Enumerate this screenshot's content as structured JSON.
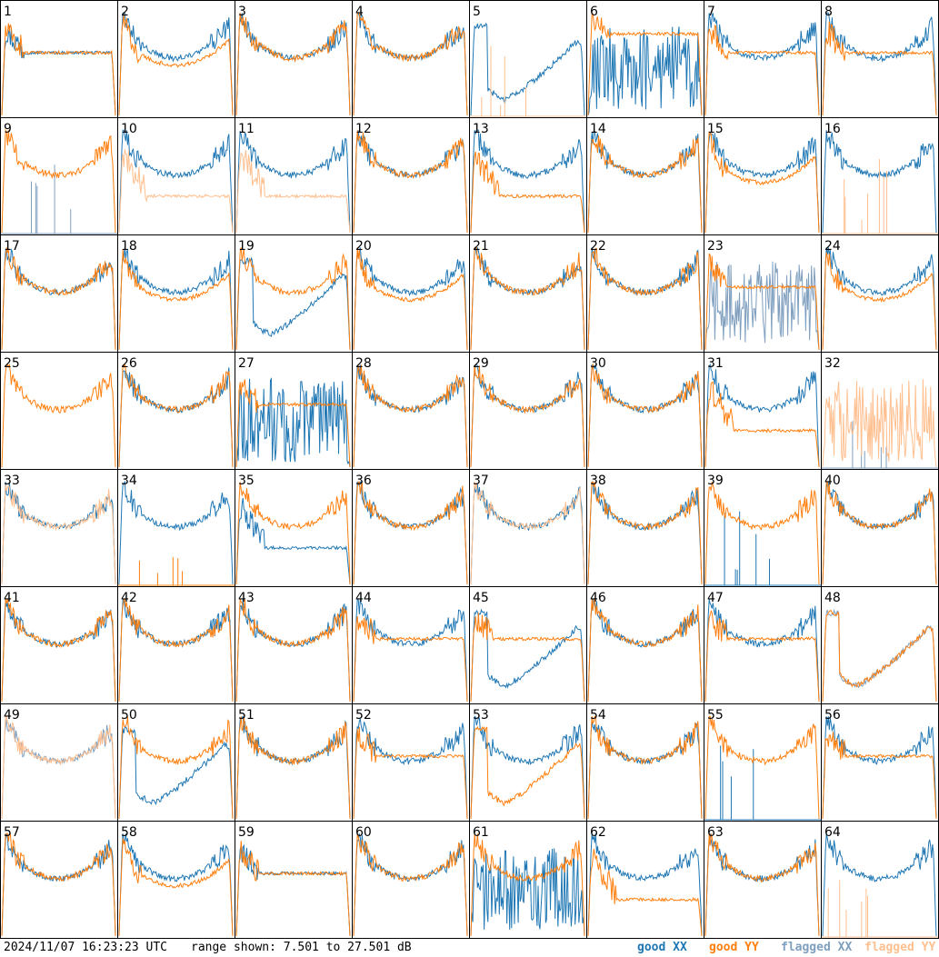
{
  "colors": {
    "good_xx": "#1f77b4",
    "good_yy": "#ff7f0e",
    "flagged_xx": "#7f9fbf",
    "flagged_yy": "#ffbf8f",
    "grid": "#000000"
  },
  "footer": {
    "timestamp": "2024/11/07 16:23:23 UTC",
    "range_text": "range shown: 7.501 to 27.501 dB",
    "legend_good_xx": "good XX",
    "legend_good_yy": "good YY",
    "legend_flagged_xx": "flagged XX",
    "legend_flagged_yy": "flagged YY"
  },
  "chart_data": {
    "type": "line",
    "layout": "8x8 grid of small multiples",
    "ylim": [
      7.501,
      27.501
    ],
    "unit": "dB",
    "panels": [
      {
        "id": "1",
        "xx": "flat",
        "yy": "flat",
        "xx_flag": false,
        "yy_flag": false
      },
      {
        "id": "2",
        "xx": "bowl",
        "yy": "bowl_low",
        "xx_flag": false,
        "yy_flag": false
      },
      {
        "id": "3",
        "xx": "bowl",
        "yy": "bowl",
        "xx_flag": false,
        "yy_flag": false
      },
      {
        "id": "4",
        "xx": "bowl",
        "yy": "bowl",
        "xx_flag": false,
        "yy_flag": false
      },
      {
        "id": "5",
        "xx": "dip",
        "yy": "dead",
        "xx_flag": false,
        "yy_flag": true
      },
      {
        "id": "6",
        "xx": "noisy",
        "yy": "flat_high",
        "xx_flag": false,
        "yy_flag": false
      },
      {
        "id": "7",
        "xx": "bowl",
        "yy": "flat",
        "xx_flag": false,
        "yy_flag": false
      },
      {
        "id": "8",
        "xx": "bowl",
        "yy": "flat",
        "xx_flag": false,
        "yy_flag": false
      },
      {
        "id": "9",
        "xx": "dead",
        "yy": "bowl",
        "xx_flag": true,
        "yy_flag": false
      },
      {
        "id": "10",
        "xx": "bowl",
        "yy": "low_flat",
        "xx_flag": false,
        "yy_flag": true
      },
      {
        "id": "11",
        "xx": "bowl",
        "yy": "low_flat",
        "xx_flag": false,
        "yy_flag": true
      },
      {
        "id": "12",
        "xx": "bowl",
        "yy": "bowl",
        "xx_flag": false,
        "yy_flag": false
      },
      {
        "id": "13",
        "xx": "bowl",
        "yy": "low_flat",
        "xx_flag": false,
        "yy_flag": false
      },
      {
        "id": "14",
        "xx": "bowl",
        "yy": "bowl",
        "xx_flag": false,
        "yy_flag": false
      },
      {
        "id": "15",
        "xx": "bowl",
        "yy": "bowl_low",
        "xx_flag": false,
        "yy_flag": false
      },
      {
        "id": "16",
        "xx": "bowl",
        "yy": "dead",
        "xx_flag": false,
        "yy_flag": true
      },
      {
        "id": "17",
        "xx": "bowl",
        "yy": "bowl",
        "xx_flag": false,
        "yy_flag": false
      },
      {
        "id": "18",
        "xx": "bowl",
        "yy": "bowl_low",
        "xx_flag": false,
        "yy_flag": false
      },
      {
        "id": "19",
        "xx": "dip",
        "yy": "bowl",
        "xx_flag": false,
        "yy_flag": false
      },
      {
        "id": "20",
        "xx": "bowl",
        "yy": "bowl_low",
        "xx_flag": false,
        "yy_flag": false
      },
      {
        "id": "21",
        "xx": "bowl",
        "yy": "bowl",
        "xx_flag": false,
        "yy_flag": false
      },
      {
        "id": "22",
        "xx": "bowl",
        "yy": "bowl",
        "xx_flag": false,
        "yy_flag": false
      },
      {
        "id": "23",
        "xx": "noisy",
        "yy": "flat",
        "xx_flag": true,
        "yy_flag": false
      },
      {
        "id": "24",
        "xx": "bowl",
        "yy": "bowl_low",
        "xx_flag": false,
        "yy_flag": false
      },
      {
        "id": "25",
        "xx": "none",
        "yy": "bowl",
        "xx_flag": false,
        "yy_flag": false
      },
      {
        "id": "26",
        "xx": "bowl",
        "yy": "bowl",
        "xx_flag": false,
        "yy_flag": false
      },
      {
        "id": "27",
        "xx": "noisy",
        "yy": "flat",
        "xx_flag": false,
        "yy_flag": false
      },
      {
        "id": "28",
        "xx": "bowl",
        "yy": "bowl",
        "xx_flag": false,
        "yy_flag": false
      },
      {
        "id": "29",
        "xx": "bowl",
        "yy": "bowl",
        "xx_flag": false,
        "yy_flag": false
      },
      {
        "id": "30",
        "xx": "bowl",
        "yy": "bowl",
        "xx_flag": false,
        "yy_flag": false
      },
      {
        "id": "31",
        "xx": "bowl",
        "yy": "low_flat",
        "xx_flag": false,
        "yy_flag": false
      },
      {
        "id": "32",
        "xx": "dead",
        "yy": "noisy",
        "xx_flag": true,
        "yy_flag": true
      },
      {
        "id": "33",
        "xx": "bowl",
        "yy": "bowl",
        "xx_flag": false,
        "yy_flag": true
      },
      {
        "id": "34",
        "xx": "bowl",
        "yy": "dead",
        "xx_flag": false,
        "yy_flag": false
      },
      {
        "id": "35",
        "xx": "low_flat",
        "yy": "bowl",
        "xx_flag": false,
        "yy_flag": false
      },
      {
        "id": "36",
        "xx": "bowl",
        "yy": "bowl",
        "xx_flag": false,
        "yy_flag": false
      },
      {
        "id": "37",
        "xx": "bowl",
        "yy": "bowl",
        "xx_flag": false,
        "yy_flag": true
      },
      {
        "id": "38",
        "xx": "bowl",
        "yy": "bowl",
        "xx_flag": false,
        "yy_flag": false
      },
      {
        "id": "39",
        "xx": "dead",
        "yy": "bowl",
        "xx_flag": false,
        "yy_flag": false
      },
      {
        "id": "40",
        "xx": "bowl",
        "yy": "bowl",
        "xx_flag": false,
        "yy_flag": false
      },
      {
        "id": "41",
        "xx": "bowl",
        "yy": "bowl",
        "xx_flag": false,
        "yy_flag": false
      },
      {
        "id": "42",
        "xx": "bowl",
        "yy": "bowl",
        "xx_flag": false,
        "yy_flag": false
      },
      {
        "id": "43",
        "xx": "bowl",
        "yy": "bowl",
        "xx_flag": false,
        "yy_flag": false
      },
      {
        "id": "44",
        "xx": "bowl",
        "yy": "flat",
        "xx_flag": false,
        "yy_flag": false
      },
      {
        "id": "45",
        "xx": "dip",
        "yy": "flat",
        "xx_flag": false,
        "yy_flag": false
      },
      {
        "id": "46",
        "xx": "bowl",
        "yy": "bowl",
        "xx_flag": false,
        "yy_flag": false
      },
      {
        "id": "47",
        "xx": "bowl",
        "yy": "flat",
        "xx_flag": false,
        "yy_flag": false
      },
      {
        "id": "48",
        "xx": "dip",
        "yy": "dip",
        "xx_flag": true,
        "yy_flag": false
      },
      {
        "id": "49",
        "xx": "bowl",
        "yy": "bowl",
        "xx_flag": true,
        "yy_flag": true
      },
      {
        "id": "50",
        "xx": "dip",
        "yy": "bowl",
        "xx_flag": false,
        "yy_flag": false
      },
      {
        "id": "51",
        "xx": "bowl",
        "yy": "bowl",
        "xx_flag": false,
        "yy_flag": false
      },
      {
        "id": "52",
        "xx": "bowl",
        "yy": "flat",
        "xx_flag": false,
        "yy_flag": false
      },
      {
        "id": "53",
        "xx": "bowl",
        "yy": "dip",
        "xx_flag": false,
        "yy_flag": false
      },
      {
        "id": "54",
        "xx": "bowl",
        "yy": "bowl",
        "xx_flag": false,
        "yy_flag": false
      },
      {
        "id": "55",
        "xx": "dead",
        "yy": "bowl",
        "xx_flag": false,
        "yy_flag": false
      },
      {
        "id": "56",
        "xx": "bowl",
        "yy": "flat",
        "xx_flag": false,
        "yy_flag": false
      },
      {
        "id": "57",
        "xx": "bowl",
        "yy": "bowl",
        "xx_flag": false,
        "yy_flag": false
      },
      {
        "id": "58",
        "xx": "bowl",
        "yy": "bowl_low",
        "xx_flag": false,
        "yy_flag": false
      },
      {
        "id": "59",
        "xx": "flat",
        "yy": "flat",
        "xx_flag": false,
        "yy_flag": false
      },
      {
        "id": "60",
        "xx": "bowl",
        "yy": "bowl",
        "xx_flag": false,
        "yy_flag": false
      },
      {
        "id": "61",
        "xx": "noisy",
        "yy": "bowl",
        "xx_flag": false,
        "yy_flag": false
      },
      {
        "id": "62",
        "xx": "bowl",
        "yy": "low_flat",
        "xx_flag": false,
        "yy_flag": false
      },
      {
        "id": "63",
        "xx": "bowl",
        "yy": "bowl",
        "xx_flag": false,
        "yy_flag": false
      },
      {
        "id": "64",
        "xx": "bowl",
        "yy": "dead",
        "xx_flag": false,
        "yy_flag": true
      }
    ]
  }
}
